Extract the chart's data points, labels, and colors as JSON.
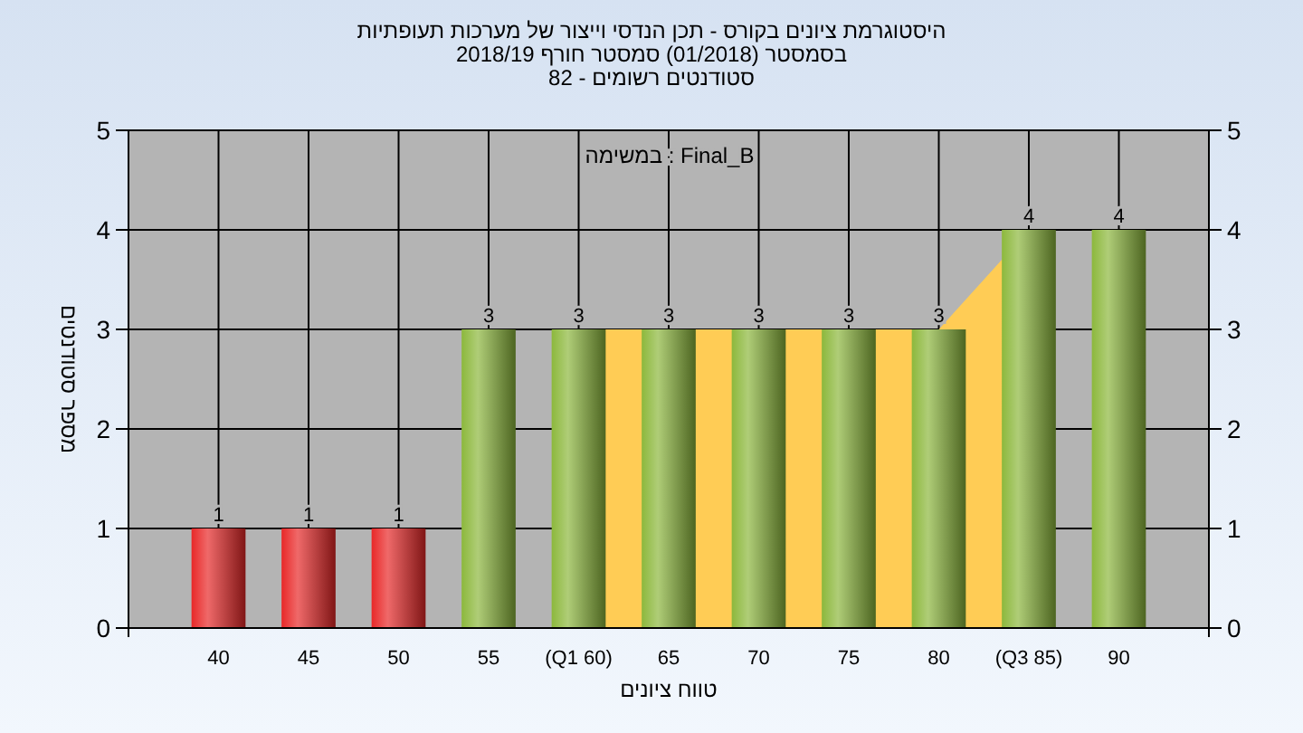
{
  "chart_data": {
    "type": "bar",
    "title": "היסטוגרמת ציונים בקורס - תכן הנדסי וייצור של מערכות תעופתיות",
    "subtitle": "בסמסטר  (01/2018)  סמסטר חורף 2018/19",
    "annotations": [
      "סטודנטים רשומים - 82",
      "Final_B : במשימה"
    ],
    "xlabel": "טווח ציונים",
    "ylabel": "מספר סטודנטים",
    "categories": [
      "40",
      "45",
      "50",
      "55",
      "(Q1 60)",
      "65",
      "70",
      "75",
      "80",
      "(Q3 85)",
      "90"
    ],
    "series": [
      {
        "type": "area",
        "color": "#ffcc55",
        "values": [
          null,
          null,
          null,
          null,
          3,
          3,
          3,
          3,
          3,
          4,
          null
        ]
      },
      {
        "colors": [
          "#e82828",
          "#e82828",
          "#e82828",
          "#8cb83c",
          "#8cb83c",
          "#8cb83c",
          "#8cb83c",
          "#8cb83c",
          "#8cb83c",
          "#8cb83c",
          "#8cb83c"
        ],
        "values": [
          1,
          1,
          1,
          3,
          3,
          3,
          3,
          3,
          3,
          4,
          4
        ],
        "value_labels": [
          "1",
          "1",
          "1",
          "3",
          "3",
          "3",
          "3",
          "3",
          "3",
          "4",
          "4"
        ]
      }
    ],
    "ylim": [
      0,
      5
    ],
    "yticks": [
      0,
      1,
      2,
      3,
      4,
      5
    ],
    "y2lim": [
      0,
      5
    ],
    "y2ticks": [
      0,
      1,
      2,
      3,
      4,
      5
    ],
    "grid": true
  }
}
